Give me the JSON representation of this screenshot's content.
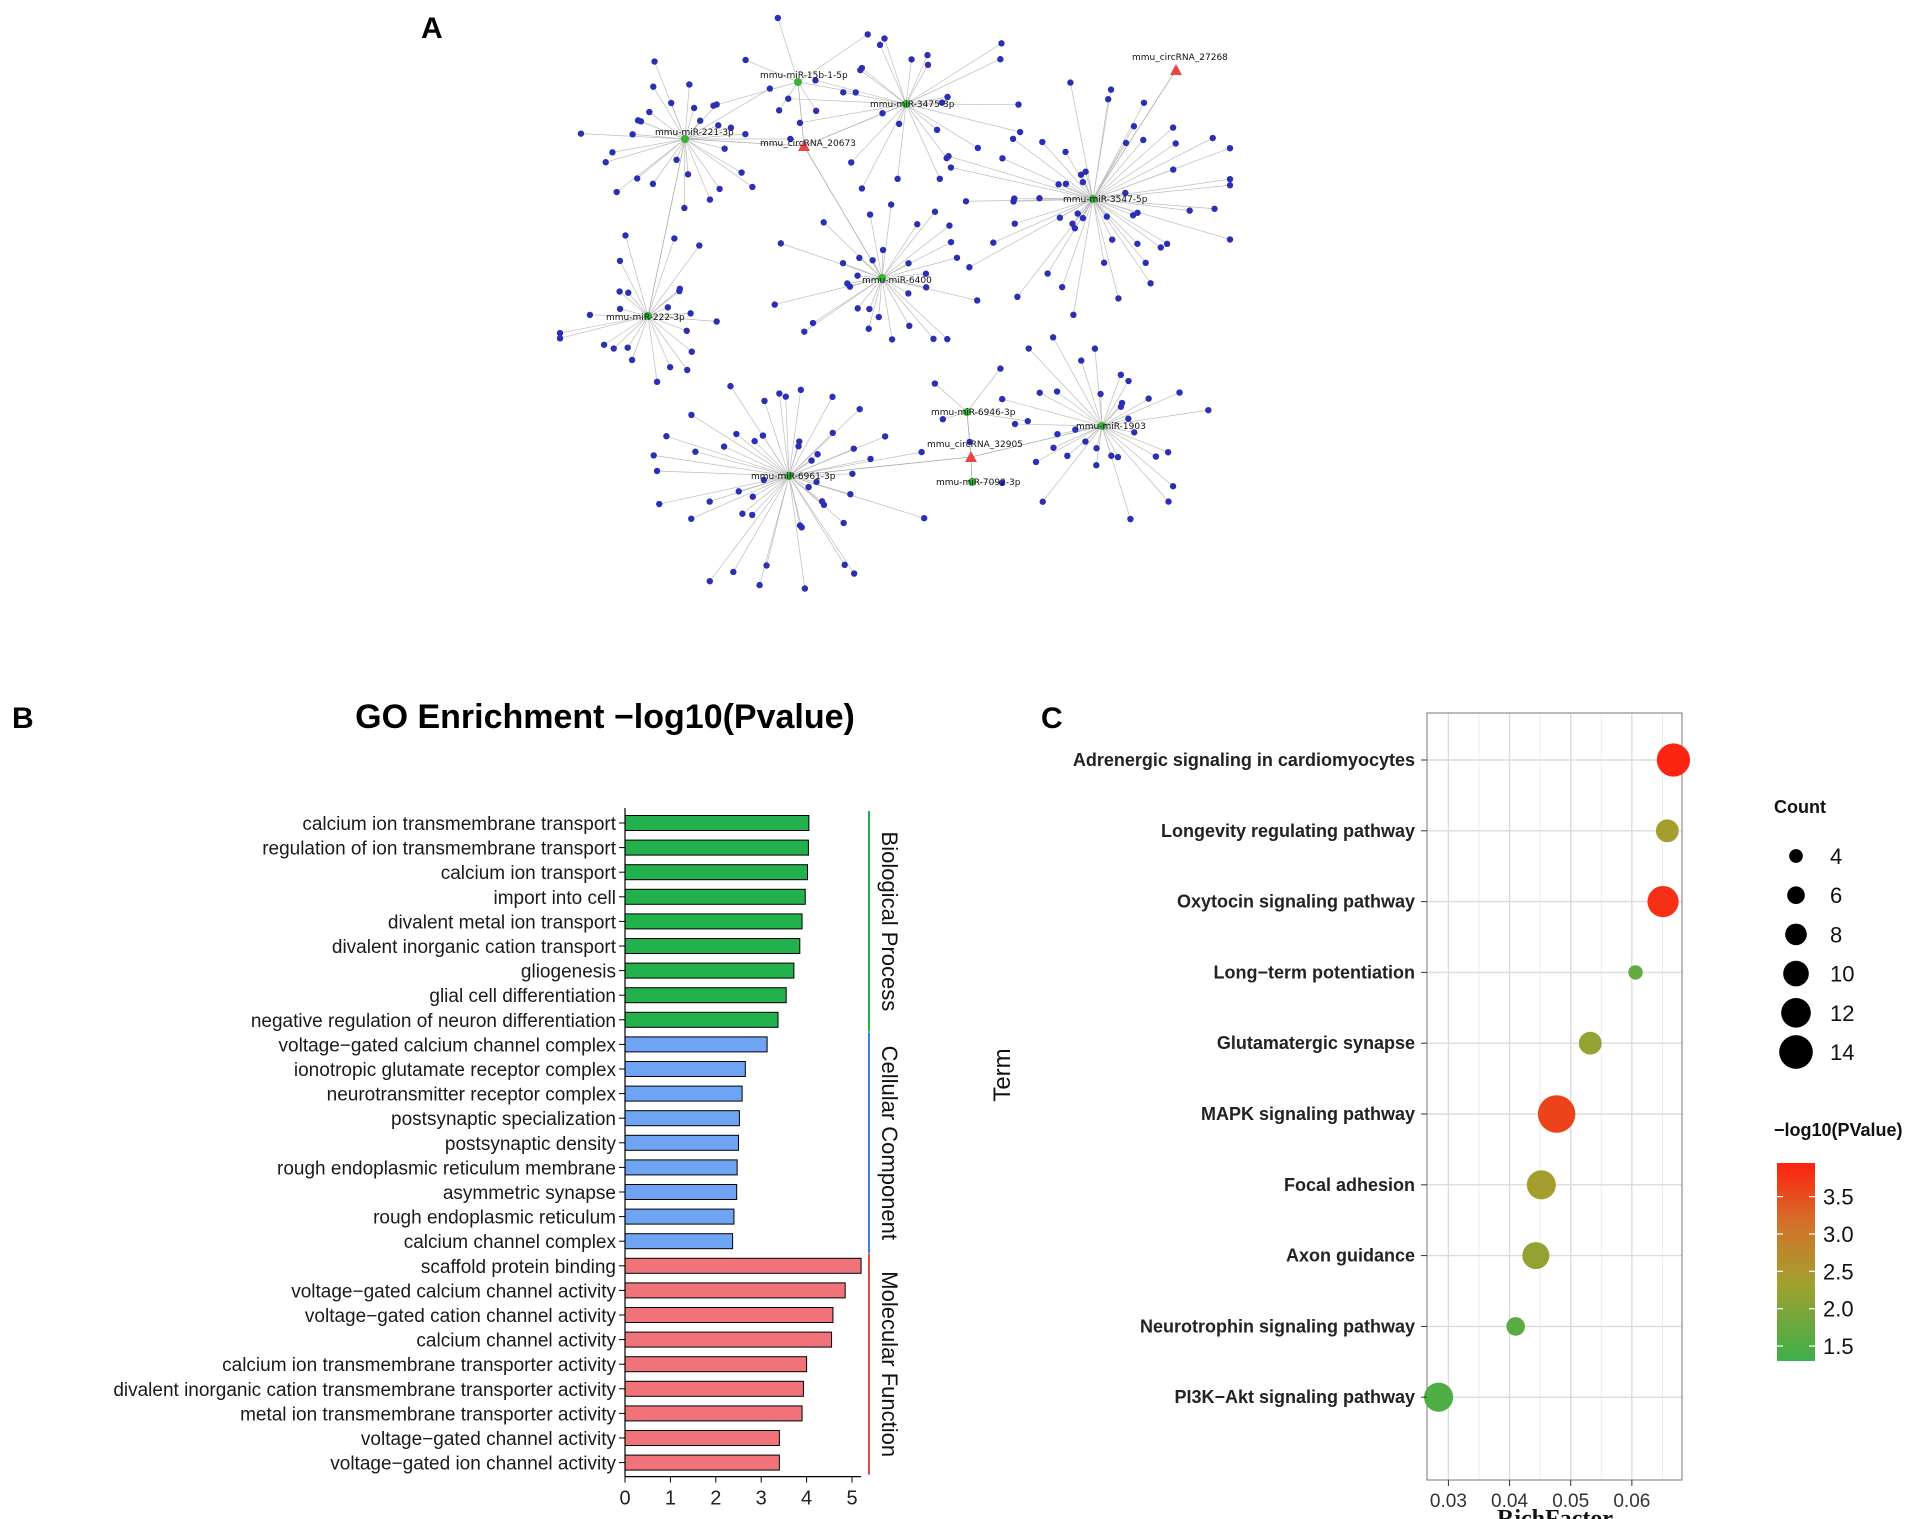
{
  "panels": {
    "a": "A",
    "b": "B",
    "c": "C"
  },
  "network": {
    "mirnas": [
      {
        "id": "m221",
        "label": "mmu-miR-221-3p",
        "color": "#35b535"
      },
      {
        "id": "m222",
        "label": "mmu-miR-222-3p",
        "color": "#35b535"
      },
      {
        "id": "m15b",
        "label": "mmu-miR-15b-1-5p",
        "color": "#35b535"
      },
      {
        "id": "m3475",
        "label": "mmu-miR-3475-3p",
        "color": "#35b535"
      },
      {
        "id": "m3547",
        "label": "mmu-miR-3547-5p",
        "color": "#35b535"
      },
      {
        "id": "m6400",
        "label": "mmu-miR-6400",
        "color": "#35b535"
      },
      {
        "id": "m6946",
        "label": "mmu-miR-6946-3p",
        "color": "#35b535"
      },
      {
        "id": "m1903",
        "label": "mmu-miR-1903",
        "color": "#35b535"
      },
      {
        "id": "m6961",
        "label": "mmu-miR-6961-3p",
        "color": "#35b535"
      },
      {
        "id": "m7092",
        "label": "mmu-miR-7092-3p",
        "color": "#35b535"
      }
    ],
    "circrnas": [
      {
        "id": "c20673",
        "label": "mmu_circRNA_20673",
        "color": "#e8474a"
      },
      {
        "id": "c27268",
        "label": "mmu_circRNA_27268",
        "color": "#e8474a"
      },
      {
        "id": "c32905",
        "label": "mmu_circRNA_32905",
        "color": "#e8474a"
      }
    ],
    "node_color": "#2b2fb5",
    "edge_color": "#bdbdbd"
  },
  "chart_data": [
    {
      "type": "bar",
      "orientation": "horizontal",
      "title": "GO Enrichment −log10(Pvalue)",
      "xlabel": "",
      "ylabel": "",
      "xlim": [
        0,
        5.2
      ],
      "xticks": [
        "0",
        "1",
        "2",
        "3",
        "4",
        "5"
      ],
      "groups": [
        {
          "name": "Biological Process",
          "color": "#22b14c",
          "line_color": "#22b14c",
          "terms": [
            {
              "label": "calcium ion transmembrane transport",
              "value": 4.05
            },
            {
              "label": "regulation of ion transmembrane transport",
              "value": 4.04
            },
            {
              "label": "calcium ion transport",
              "value": 4.02
            },
            {
              "label": "import into cell",
              "value": 3.97
            },
            {
              "label": "divalent metal ion transport",
              "value": 3.9
            },
            {
              "label": "divalent inorganic cation transport",
              "value": 3.85
            },
            {
              "label": "gliogenesis",
              "value": 3.72
            },
            {
              "label": "glial cell differentiation",
              "value": 3.55
            },
            {
              "label": "negative regulation of neuron differentiation",
              "value": 3.37
            }
          ]
        },
        {
          "name": "Cellular Component",
          "color": "#6fa4f5",
          "line_color": "#3d7fe0",
          "terms": [
            {
              "label": "voltage−gated calcium channel complex",
              "value": 3.13
            },
            {
              "label": "ionotropic glutamate receptor complex",
              "value": 2.65
            },
            {
              "label": "neurotransmitter receptor complex",
              "value": 2.58
            },
            {
              "label": "postsynaptic specialization",
              "value": 2.52
            },
            {
              "label": "postsynaptic density",
              "value": 2.5
            },
            {
              "label": "rough endoplasmic reticulum membrane",
              "value": 2.47
            },
            {
              "label": "asymmetric synapse",
              "value": 2.46
            },
            {
              "label": "rough endoplasmic reticulum",
              "value": 2.4
            },
            {
              "label": "calcium channel complex",
              "value": 2.37
            }
          ]
        },
        {
          "name": "Molecular Function",
          "color": "#f0737a",
          "line_color": "#e8474a",
          "terms": [
            {
              "label": "scaffold protein binding",
              "value": 5.2
            },
            {
              "label": "voltage−gated calcium channel activity",
              "value": 4.85
            },
            {
              "label": "voltage−gated cation channel activity",
              "value": 4.58
            },
            {
              "label": "calcium channel activity",
              "value": 4.55
            },
            {
              "label": "calcium ion transmembrane transporter activity",
              "value": 4.0
            },
            {
              "label": "divalent inorganic cation transmembrane transporter activity",
              "value": 3.93
            },
            {
              "label": "metal ion transmembrane transporter activity",
              "value": 3.9
            },
            {
              "label": "voltage−gated channel activity",
              "value": 3.4
            },
            {
              "label": "voltage−gated ion channel activity",
              "value": 3.4
            }
          ]
        }
      ]
    },
    {
      "type": "scatter",
      "subtype": "bubble",
      "title": "",
      "xlabel": "RichFactor",
      "ylabel": "Term",
      "xlim": [
        0.0265,
        0.0682
      ],
      "xticks": [
        0.03,
        0.04,
        0.05,
        0.06
      ],
      "xtick_labels": [
        "0.03",
        "0.04",
        "0.05",
        "0.06"
      ],
      "terms": [
        {
          "label": "Adrenergic signaling in cardiomyocytes",
          "richfactor": 0.0668,
          "count": 13,
          "neglog10p": 3.9
        },
        {
          "label": "Longevity regulating pathway",
          "richfactor": 0.0658,
          "count": 8,
          "neglog10p": 2.4
        },
        {
          "label": "Oxytocin signaling pathway",
          "richfactor": 0.0651,
          "count": 12,
          "neglog10p": 3.8
        },
        {
          "label": "Long−term potentiation",
          "richfactor": 0.0606,
          "count": 4,
          "neglog10p": 1.7
        },
        {
          "label": "Glutamatergic synapse",
          "richfactor": 0.0532,
          "count": 8,
          "neglog10p": 2.2
        },
        {
          "label": "MAPK signaling pathway",
          "richfactor": 0.0477,
          "count": 15,
          "neglog10p": 3.6
        },
        {
          "label": "Focal adhesion",
          "richfactor": 0.0452,
          "count": 11,
          "neglog10p": 2.4
        },
        {
          "label": "Axon guidance",
          "richfactor": 0.0443,
          "count": 10,
          "neglog10p": 2.2
        },
        {
          "label": "Neurotrophin signaling pathway",
          "richfactor": 0.041,
          "count": 6,
          "neglog10p": 1.6
        },
        {
          "label": "PI3K−Akt signaling pathway",
          "richfactor": 0.0284,
          "count": 11,
          "neglog10p": 1.5
        }
      ],
      "size_legend": {
        "title": "Count",
        "values": [
          4,
          6,
          8,
          10,
          12,
          14
        ]
      },
      "color_legend": {
        "title": "−log10(PValue)",
        "range": [
          1.3,
          3.95
        ],
        "ticks": [
          3.5,
          3.0,
          2.5,
          2.0,
          1.5
        ],
        "tick_labels": [
          "3.5",
          "3.0",
          "2.5",
          "2.0",
          "1.5"
        ],
        "low_color": "#3cb04a",
        "high_color": "#ff2010"
      }
    }
  ]
}
